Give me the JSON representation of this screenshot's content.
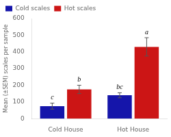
{
  "chart_data": {
    "type": "bar",
    "categories": [
      "Cold House",
      "Hot House"
    ],
    "series": [
      {
        "name": "Cold scales",
        "color": "#1515aa",
        "values": [
          75,
          140
        ],
        "errors": [
          18,
          15
        ],
        "letters": [
          "c",
          "bc"
        ]
      },
      {
        "name": "Hot scales",
        "color": "#cc1515",
        "values": [
          175,
          430
        ],
        "errors": [
          25,
          55
        ],
        "letters": [
          "b",
          "a"
        ]
      }
    ],
    "ylabel": "Mean (±SEM) scales per sample",
    "ylim": [
      0,
      600
    ],
    "yticks": [
      0,
      100,
      200,
      300,
      400,
      500,
      600
    ],
    "legend": "upper left",
    "grid": false
  }
}
